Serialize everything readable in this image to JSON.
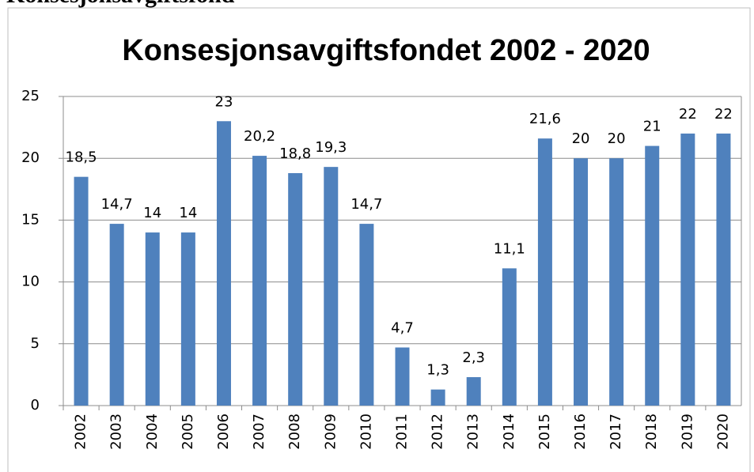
{
  "page_heading": "Konsesjonsavgiftsfond",
  "chart_data": {
    "type": "bar",
    "title": "Konsesjonsavgiftsfondet 2002 - 2020",
    "categories": [
      "2002",
      "2003",
      "2004",
      "2005",
      "2006",
      "2007",
      "2008",
      "2009",
      "2010",
      "2011",
      "2012",
      "2013",
      "2014",
      "2015",
      "2016",
      "2017",
      "2018",
      "2019",
      "2020"
    ],
    "values": [
      18.5,
      14.7,
      14,
      14,
      23,
      20.2,
      18.8,
      19.3,
      14.7,
      4.7,
      1.3,
      2.3,
      11.1,
      21.6,
      20,
      20,
      21,
      22,
      22
    ],
    "value_labels": [
      "18,5",
      "14,7",
      "14",
      "14",
      "23",
      "20,2",
      "18,8",
      "19,3",
      "14,7",
      "4,7",
      "1,3",
      "2,3",
      "11,1",
      "21,6",
      "20",
      "20",
      "21",
      "22",
      "22"
    ],
    "color": "#4f81bd",
    "ylim": [
      0,
      25
    ],
    "yticks": [
      0,
      5,
      10,
      15,
      20,
      25
    ],
    "grid": true
  }
}
